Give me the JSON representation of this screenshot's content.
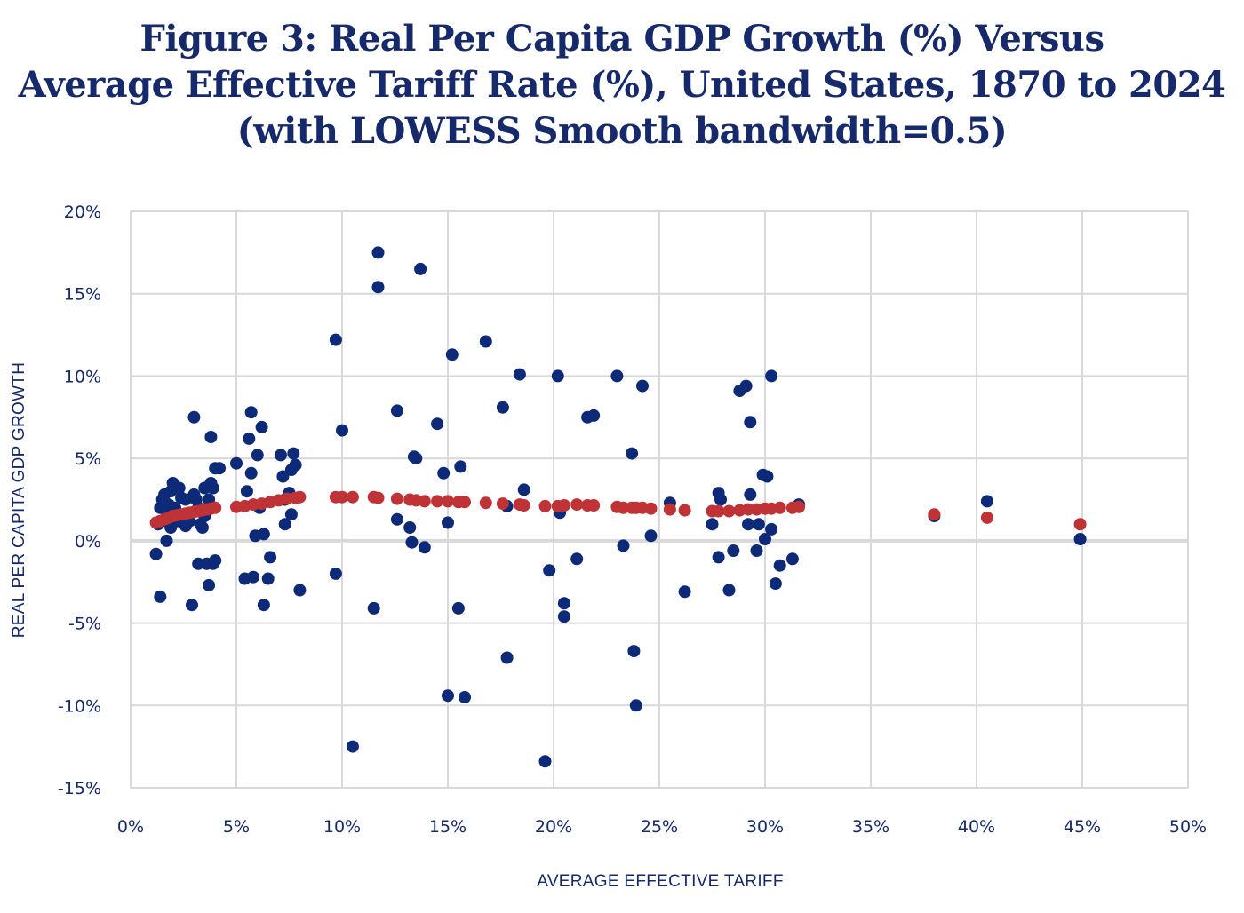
{
  "title": {
    "line1": "Figure 3: Real Per Capita GDP Growth (%) Versus",
    "line2": "Average Effective Tariff Rate (%), United States, 1870 to 2024",
    "line3": "(with LOWESS Smooth bandwidth=0.5)"
  },
  "colors": {
    "observed": "#0d2a78",
    "lowess": "#bf3235",
    "grid": "#d9d9d9",
    "text": "#16296b"
  },
  "chart_data": {
    "type": "scatter",
    "title": "Figure 3: Real Per Capita GDP Growth (%) Versus Average Effective Tariff Rate (%), United States, 1870 to 2024 (with LOWESS Smooth bandwidth=0.5)",
    "xlabel": "AVERAGE EFFECTIVE TARIFF",
    "ylabel": "REAL PER CAPITA GDP GROWTH",
    "xlim": [
      0,
      50
    ],
    "ylim": [
      -15,
      20
    ],
    "x_ticks": [
      "0%",
      "5%",
      "10%",
      "15%",
      "20%",
      "25%",
      "30%",
      "35%",
      "40%",
      "45%",
      "50%"
    ],
    "y_ticks": [
      "20%",
      "15%",
      "10%",
      "5%",
      "0%",
      "-5%",
      "-10%",
      "-15%"
    ],
    "grid": true,
    "legend": "none",
    "series": [
      {
        "values": [
          [
            1.2,
            -0.8
          ],
          [
            1.3,
            1.0
          ],
          [
            1.4,
            2.0
          ],
          [
            1.4,
            -3.4
          ],
          [
            1.5,
            2.5
          ],
          [
            1.5,
            1.2
          ],
          [
            1.6,
            2.8
          ],
          [
            1.7,
            1.8
          ],
          [
            1.7,
            0.0
          ],
          [
            1.8,
            2.2
          ],
          [
            1.9,
            3.0
          ],
          [
            1.9,
            0.8
          ],
          [
            2.0,
            3.5
          ],
          [
            2.1,
            2.0
          ],
          [
            2.2,
            1.2
          ],
          [
            2.3,
            3.2
          ],
          [
            2.4,
            2.6
          ],
          [
            2.5,
            1.5
          ],
          [
            2.6,
            2.5
          ],
          [
            2.6,
            0.9
          ],
          [
            2.8,
            1.2
          ],
          [
            2.9,
            -3.9
          ],
          [
            3.0,
            7.5
          ],
          [
            3.0,
            2.8
          ],
          [
            3.1,
            2.5
          ],
          [
            3.2,
            -1.4
          ],
          [
            3.2,
            2.0
          ],
          [
            3.3,
            1.0
          ],
          [
            3.4,
            0.8
          ],
          [
            3.5,
            3.2
          ],
          [
            3.5,
            1.5
          ],
          [
            3.6,
            -1.4
          ],
          [
            3.7,
            -2.7
          ],
          [
            3.7,
            2.5
          ],
          [
            3.8,
            6.3
          ],
          [
            3.8,
            3.5
          ],
          [
            3.9,
            3.2
          ],
          [
            3.9,
            -1.4
          ],
          [
            4.0,
            -1.2
          ],
          [
            4.0,
            4.4
          ],
          [
            4.2,
            4.4
          ],
          [
            5.0,
            4.7
          ],
          [
            5.4,
            -2.3
          ],
          [
            5.5,
            3.0
          ],
          [
            5.6,
            6.2
          ],
          [
            5.7,
            7.8
          ],
          [
            5.7,
            4.1
          ],
          [
            5.8,
            -2.2
          ],
          [
            5.9,
            0.3
          ],
          [
            6.0,
            5.2
          ],
          [
            6.1,
            2.0
          ],
          [
            6.2,
            6.9
          ],
          [
            6.3,
            0.4
          ],
          [
            6.3,
            -3.9
          ],
          [
            6.5,
            -2.3
          ],
          [
            6.6,
            -1.0
          ],
          [
            7.1,
            5.2
          ],
          [
            7.2,
            3.9
          ],
          [
            7.3,
            1.0
          ],
          [
            7.3,
            2.5
          ],
          [
            7.5,
            2.9
          ],
          [
            7.6,
            1.6
          ],
          [
            7.6,
            4.3
          ],
          [
            7.7,
            5.3
          ],
          [
            7.8,
            4.6
          ],
          [
            8.0,
            -3.0
          ],
          [
            9.7,
            12.2
          ],
          [
            9.7,
            -2.0
          ],
          [
            10.0,
            6.7
          ],
          [
            10.5,
            -12.5
          ],
          [
            11.5,
            -4.1
          ],
          [
            11.7,
            17.5
          ],
          [
            11.7,
            15.4
          ],
          [
            12.6,
            7.9
          ],
          [
            12.6,
            1.3
          ],
          [
            13.2,
            0.8
          ],
          [
            13.3,
            -0.1
          ],
          [
            13.4,
            5.1
          ],
          [
            13.5,
            5.0
          ],
          [
            13.7,
            16.5
          ],
          [
            13.9,
            -0.4
          ],
          [
            14.5,
            7.1
          ],
          [
            14.8,
            4.1
          ],
          [
            15.0,
            1.1
          ],
          [
            15.0,
            -9.4
          ],
          [
            15.2,
            11.3
          ],
          [
            15.5,
            -4.1
          ],
          [
            15.6,
            4.5
          ],
          [
            15.8,
            -9.5
          ],
          [
            16.8,
            12.1
          ],
          [
            17.6,
            8.1
          ],
          [
            17.8,
            2.1
          ],
          [
            17.8,
            -7.1
          ],
          [
            18.4,
            10.1
          ],
          [
            18.6,
            3.1
          ],
          [
            19.6,
            -13.4
          ],
          [
            19.8,
            -1.8
          ],
          [
            20.2,
            10.0
          ],
          [
            20.3,
            1.7
          ],
          [
            20.5,
            -3.8
          ],
          [
            20.5,
            -4.6
          ],
          [
            21.1,
            -1.1
          ],
          [
            21.6,
            7.5
          ],
          [
            21.9,
            7.6
          ],
          [
            23.0,
            10.0
          ],
          [
            23.3,
            -0.3
          ],
          [
            23.7,
            5.3
          ],
          [
            23.8,
            -6.7
          ],
          [
            23.9,
            -10.0
          ],
          [
            24.2,
            9.4
          ],
          [
            24.6,
            0.3
          ],
          [
            25.5,
            2.3
          ],
          [
            26.2,
            -3.1
          ],
          [
            27.5,
            1.0
          ],
          [
            27.8,
            2.9
          ],
          [
            27.8,
            -1.0
          ],
          [
            27.9,
            2.5
          ],
          [
            28.3,
            -3.0
          ],
          [
            28.5,
            -0.6
          ],
          [
            28.8,
            9.1
          ],
          [
            29.1,
            9.4
          ],
          [
            29.2,
            1.0
          ],
          [
            29.3,
            7.2
          ],
          [
            29.3,
            2.8
          ],
          [
            29.6,
            -0.6
          ],
          [
            29.7,
            1.0
          ],
          [
            29.9,
            4.0
          ],
          [
            30.0,
            0.1
          ],
          [
            30.1,
            3.9
          ],
          [
            30.3,
            10.0
          ],
          [
            30.3,
            0.7
          ],
          [
            30.5,
            -2.6
          ],
          [
            30.7,
            -1.5
          ],
          [
            31.3,
            -1.1
          ],
          [
            31.6,
            2.2
          ],
          [
            38.0,
            1.5
          ],
          [
            40.5,
            2.4
          ],
          [
            44.9,
            0.1
          ]
        ]
      },
      {
        "values": [
          [
            1.2,
            1.1
          ],
          [
            1.4,
            1.2
          ],
          [
            1.6,
            1.3
          ],
          [
            1.8,
            1.4
          ],
          [
            2.0,
            1.5
          ],
          [
            2.2,
            1.55
          ],
          [
            2.4,
            1.6
          ],
          [
            2.6,
            1.65
          ],
          [
            2.8,
            1.7
          ],
          [
            3.0,
            1.75
          ],
          [
            3.2,
            1.8
          ],
          [
            3.4,
            1.85
          ],
          [
            3.6,
            1.9
          ],
          [
            3.8,
            1.95
          ],
          [
            4.0,
            2.0
          ],
          [
            5.0,
            2.05
          ],
          [
            5.4,
            2.1
          ],
          [
            5.8,
            2.2
          ],
          [
            6.2,
            2.25
          ],
          [
            6.6,
            2.35
          ],
          [
            7.0,
            2.45
          ],
          [
            7.4,
            2.55
          ],
          [
            7.8,
            2.6
          ],
          [
            8.0,
            2.65
          ],
          [
            9.7,
            2.65
          ],
          [
            10.0,
            2.65
          ],
          [
            10.5,
            2.65
          ],
          [
            11.5,
            2.65
          ],
          [
            11.7,
            2.6
          ],
          [
            12.6,
            2.55
          ],
          [
            13.2,
            2.5
          ],
          [
            13.5,
            2.45
          ],
          [
            13.9,
            2.4
          ],
          [
            14.5,
            2.4
          ],
          [
            15.0,
            2.4
          ],
          [
            15.5,
            2.35
          ],
          [
            15.8,
            2.35
          ],
          [
            16.8,
            2.3
          ],
          [
            17.6,
            2.25
          ],
          [
            18.4,
            2.2
          ],
          [
            18.6,
            2.15
          ],
          [
            19.6,
            2.1
          ],
          [
            20.2,
            2.1
          ],
          [
            20.5,
            2.15
          ],
          [
            21.1,
            2.2
          ],
          [
            21.6,
            2.15
          ],
          [
            21.9,
            2.15
          ],
          [
            23.0,
            2.05
          ],
          [
            23.3,
            2.0
          ],
          [
            23.7,
            2.0
          ],
          [
            23.9,
            2.0
          ],
          [
            24.2,
            2.0
          ],
          [
            24.6,
            1.95
          ],
          [
            25.5,
            1.9
          ],
          [
            26.2,
            1.85
          ],
          [
            27.5,
            1.8
          ],
          [
            27.8,
            1.8
          ],
          [
            28.3,
            1.8
          ],
          [
            28.8,
            1.85
          ],
          [
            29.2,
            1.9
          ],
          [
            29.6,
            1.9
          ],
          [
            30.0,
            1.95
          ],
          [
            30.3,
            1.95
          ],
          [
            30.7,
            2.0
          ],
          [
            31.3,
            2.0
          ],
          [
            31.6,
            2.05
          ],
          [
            38.0,
            1.6
          ],
          [
            40.5,
            1.4
          ],
          [
            44.9,
            1.0
          ]
        ]
      }
    ]
  }
}
